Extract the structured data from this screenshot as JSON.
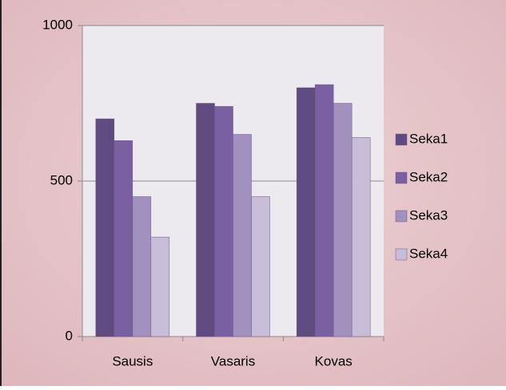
{
  "chart_data": {
    "type": "bar",
    "categories": [
      "Sausis",
      "Vasaris",
      "Kovas"
    ],
    "series": [
      {
        "name": "Seka1",
        "color": "#5f4b7f",
        "values": [
          700,
          750,
          800
        ]
      },
      {
        "name": "Seka2",
        "color": "#7b5fa3",
        "values": [
          630,
          740,
          810
        ]
      },
      {
        "name": "Seka3",
        "color": "#a290bf",
        "values": [
          450,
          650,
          750
        ]
      },
      {
        "name": "Seka4",
        "color": "#c8bdd9",
        "values": [
          320,
          450,
          640
        ]
      }
    ],
    "ylim": [
      0,
      1000
    ],
    "yticks": [
      0,
      500,
      1000
    ],
    "grid": true,
    "legend": "right"
  }
}
